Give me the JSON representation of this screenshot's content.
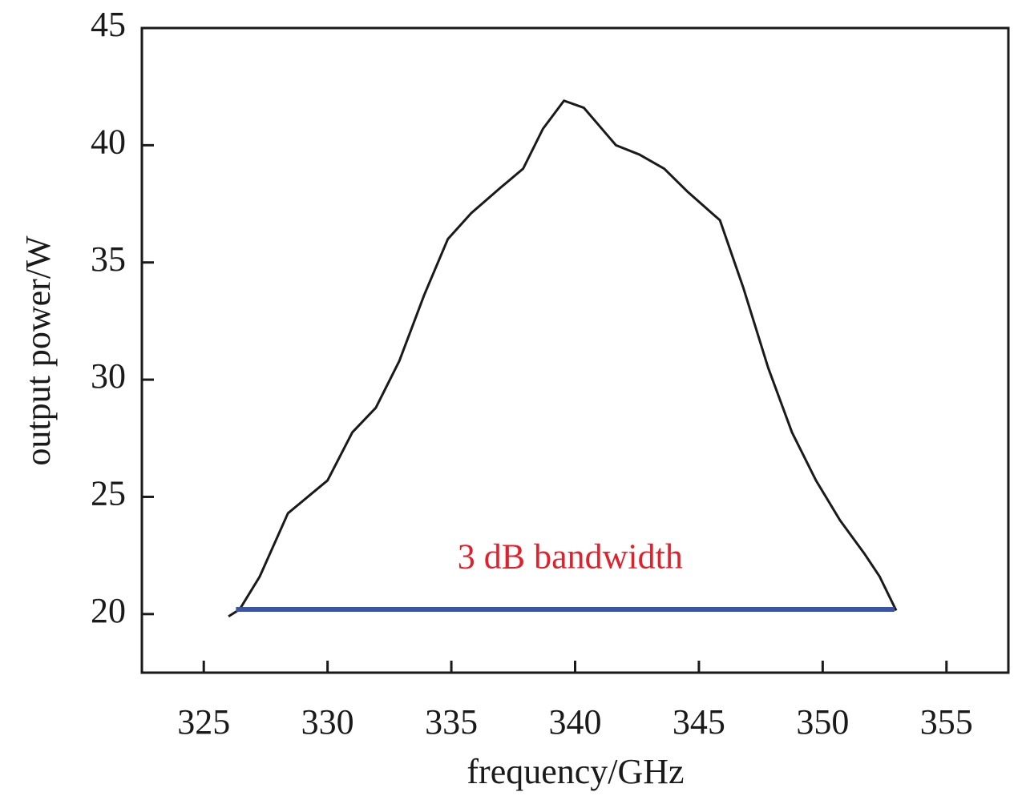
{
  "chart_data": {
    "type": "line",
    "xlabel": "frequency/GHz",
    "ylabel": "output power/W",
    "x": [
      326.0,
      326.45,
      327.26,
      328.4,
      329.2,
      330.0,
      331.0,
      331.95,
      332.9,
      333.9,
      334.86,
      335.8,
      337.0,
      337.9,
      338.7,
      339.55,
      340.35,
      341.65,
      342.6,
      343.6,
      344.56,
      345.85,
      346.8,
      347.8,
      348.76,
      349.73,
      350.7,
      351.67,
      352.3,
      352.97
    ],
    "series": [
      {
        "color": "#1a1a1a",
        "values": [
          19.9,
          20.2,
          21.6,
          24.3,
          25.0,
          25.7,
          27.75,
          28.8,
          30.8,
          33.6,
          36.0,
          37.1,
          38.2,
          39.0,
          40.7,
          41.9,
          41.6,
          40.0,
          39.6,
          39.0,
          38.0,
          36.8,
          33.9,
          30.5,
          27.75,
          25.7,
          24.0,
          22.6,
          21.6,
          20.15
        ]
      }
    ],
    "bandwidth_line": {
      "x": [
        326.3,
        352.9
      ],
      "y": [
        20.2,
        20.2
      ],
      "color": "#3a55a4"
    },
    "annotation": {
      "text": "3 dB bandwidth",
      "x": 339.8,
      "y": 22.3,
      "color": "#e0202a"
    },
    "xlim": [
      322.5,
      357.5
    ],
    "xticks": [
      325,
      330,
      335,
      340,
      345,
      350,
      355
    ],
    "ylim": [
      17.5,
      45
    ],
    "yticks": [
      20,
      25,
      30,
      35,
      40,
      45
    ],
    "grid": false
  }
}
